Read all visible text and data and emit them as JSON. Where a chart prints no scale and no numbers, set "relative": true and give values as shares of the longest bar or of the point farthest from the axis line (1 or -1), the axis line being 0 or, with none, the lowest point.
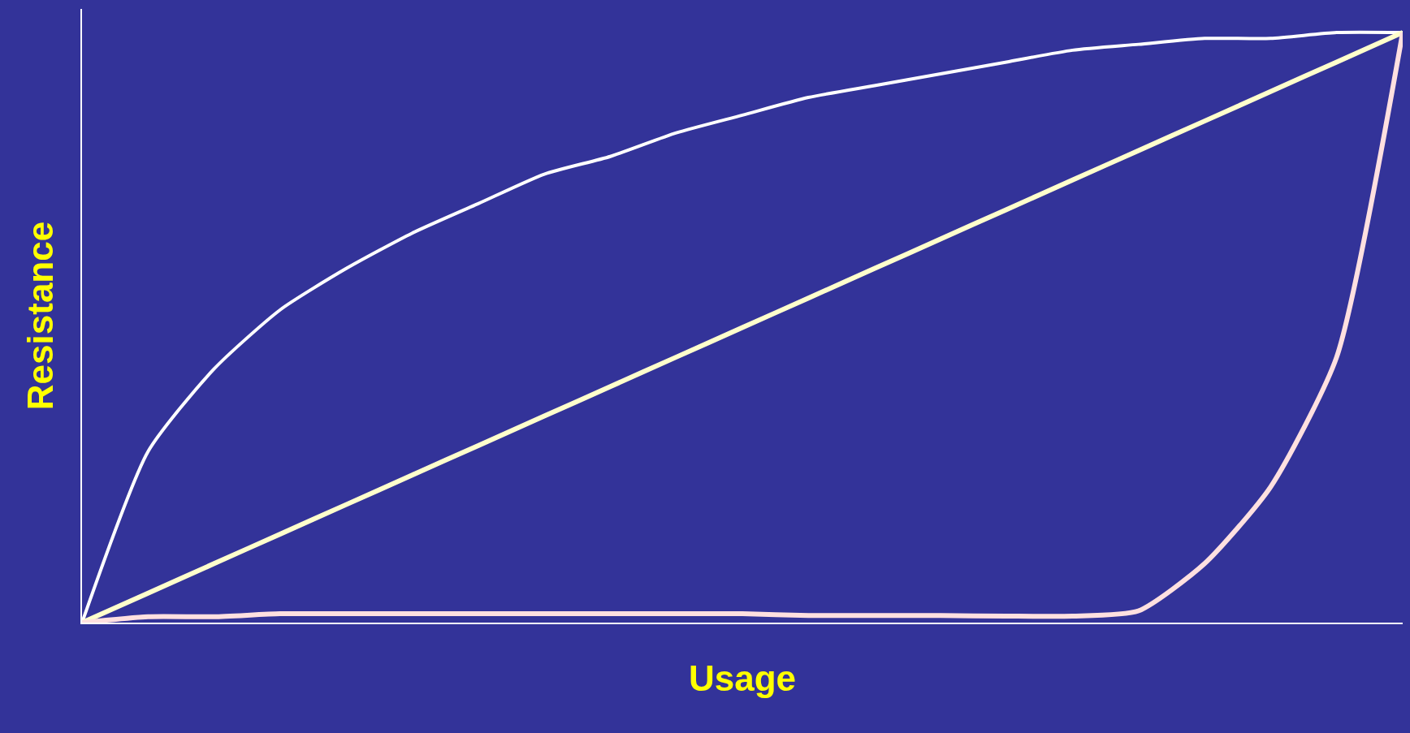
{
  "chart_data": {
    "type": "line",
    "relative": true,
    "xlabel": "Usage",
    "ylabel": "Resistance",
    "categories": [
      null,
      null,
      null,
      null,
      null,
      null,
      null,
      null,
      null,
      null,
      null,
      null,
      null,
      null,
      null,
      null,
      null,
      null,
      null,
      null,
      null
    ],
    "series": [
      {
        "color": "#ffffff",
        "values": [
          0,
          0.29,
          0.43,
          0.53,
          0.6,
          0.66,
          0.71,
          0.76,
          0.79,
          0.83,
          0.86,
          0.89,
          0.91,
          0.93,
          0.95,
          0.97,
          0.98,
          0.99,
          0.99,
          1.0,
          1.0
        ]
      },
      {
        "color": "#ffffcc",
        "values": [
          0,
          0.05,
          0.1,
          0.15,
          0.2,
          0.25,
          0.3,
          0.35,
          0.4,
          0.45,
          0.5,
          0.55,
          0.6,
          0.65,
          0.7,
          0.75,
          0.8,
          0.85,
          0.9,
          0.95,
          1.0
        ]
      },
      {
        "color": "#ffe0e0",
        "values": [
          0,
          0.01,
          0.01,
          0.015,
          0.015,
          0.015,
          0.015,
          0.015,
          0.015,
          0.015,
          0.015,
          0.012,
          0.012,
          0.012,
          0.011,
          0.011,
          0.02,
          0.1,
          0.23,
          0.45,
          1.0
        ]
      }
    ],
    "marker": "none",
    "line_style": "solid"
  }
}
